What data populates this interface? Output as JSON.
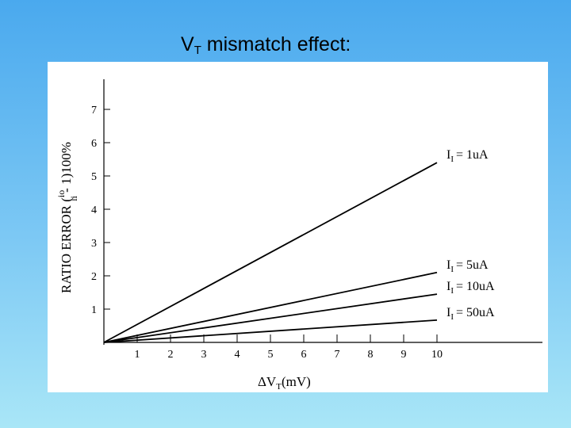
{
  "slide": {
    "title_main": "V",
    "title_sub": "T",
    "title_rest": " mismatch effect:"
  },
  "colors": {
    "background_top": "#4aa9ee",
    "background_bottom": "#a9e6f7",
    "plot_background": "#ffffff",
    "ink": "#000000"
  },
  "chart_data": {
    "type": "line",
    "title": "",
    "xlabel": {
      "prefix": "ΔV",
      "sub": "T",
      "suffix": "(mV)"
    },
    "ylabel": {
      "main": "RATIO ERROR (",
      "frac_num": "io",
      "frac_den": "ii",
      "rest": " - 1)100%"
    },
    "xlim": [
      0,
      10
    ],
    "ylim": [
      0,
      7
    ],
    "x_ticks": [
      "1",
      "2",
      "3",
      "4",
      "5",
      "6",
      "7",
      "8",
      "9",
      "10"
    ],
    "y_ticks": [
      "1",
      "2",
      "3",
      "4",
      "5",
      "6",
      "7"
    ],
    "grid": false,
    "series": [
      {
        "name": {
          "prefix": "I",
          "sub": "I",
          "value": "=  1uA"
        },
        "x": [
          0,
          10
        ],
        "y": [
          0,
          5.4
        ]
      },
      {
        "name": {
          "prefix": "I",
          "sub": "I",
          "value": "=  5uA"
        },
        "x": [
          0,
          10
        ],
        "y": [
          0,
          2.1
        ]
      },
      {
        "name": {
          "prefix": "I",
          "sub": "I",
          "value": "= 10uA"
        },
        "x": [
          0,
          10
        ],
        "y": [
          0,
          1.45
        ]
      },
      {
        "name": {
          "prefix": "I",
          "sub": "I",
          "value": "= 50uA"
        },
        "x": [
          0,
          10
        ],
        "y": [
          0,
          0.67
        ]
      }
    ]
  }
}
